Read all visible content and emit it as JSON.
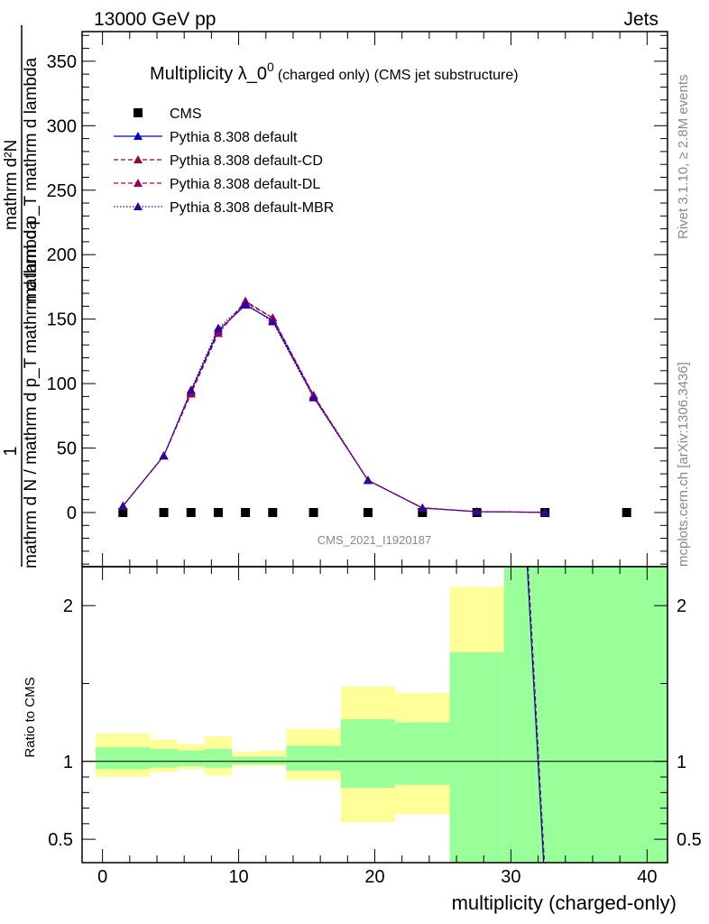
{
  "header": {
    "left": "13000 GeV pp",
    "right": "Jets"
  },
  "side": {
    "rivet": "Rivet 3.1.10, ≥ 2.8M events",
    "mcplots": "mcplots.cern.ch [arXiv:1306.3436]"
  },
  "chart_data": [
    {
      "type": "line",
      "title": "Multiplicity λ_0",
      "title_superscript": "0",
      "subtitle": "(charged only) (CMS jet substructure)",
      "watermark": "CMS_2021_I1920187",
      "ylabel_frac_num": "1",
      "ylabel_frac_den": "mathrm d N / mathrm d p_T mathrm d lambda",
      "ylabel_top": "mathrm d²N",
      "ylabel_bottom": "mathrm d p_T mathrm d lambda",
      "xlim": [
        -1.5,
        41.5
      ],
      "ylim": [
        -42,
        373
      ],
      "yticks": [
        0,
        50,
        100,
        150,
        200,
        250,
        300,
        350
      ],
      "legend_position": "top-left",
      "x": [
        1.5,
        4.5,
        6.5,
        8.5,
        10.5,
        12.5,
        15.5,
        19.5,
        23.5,
        27.5,
        32.5,
        38.5
      ],
      "series": [
        {
          "name": "CMS",
          "style": "marker",
          "color": "#000000",
          "values": [
            0,
            0,
            0,
            0,
            0,
            0,
            0,
            0,
            0,
            0,
            0,
            0
          ]
        },
        {
          "name": "Pythia 8.308 default",
          "style": "solid",
          "color": "#0000cc",
          "values": [
            5,
            44,
            94,
            141,
            161,
            149,
            90,
            25,
            3.5,
            0.7,
            0.1,
            null
          ]
        },
        {
          "name": "Pythia 8.308 default-CD",
          "style": "dashed",
          "color": "#990033",
          "values": [
            5,
            44,
            92,
            139,
            164,
            151,
            91,
            25,
            3.6,
            0.7,
            0.1,
            null
          ]
        },
        {
          "name": "Pythia 8.308 default-DL",
          "style": "dashed",
          "color": "#990066",
          "values": [
            5,
            44,
            93,
            139,
            163,
            151,
            91,
            25,
            3.6,
            0.7,
            0.1,
            null
          ]
        },
        {
          "name": "Pythia 8.308 default-MBR",
          "style": "dotted",
          "color": "#330099",
          "values": [
            5,
            44,
            95,
            143,
            162,
            148,
            89,
            25,
            3.4,
            0.7,
            0.1,
            null
          ]
        }
      ]
    },
    {
      "type": "area",
      "ylabel": "Ratio to CMS",
      "xlabel": "multiplicity (charged-only)",
      "xlim": [
        -1.5,
        41.5
      ],
      "ylim": [
        0.35,
        2.25
      ],
      "yticks_left": [
        "2",
        "1",
        "0.5"
      ],
      "yticks_right": [
        "2",
        "1",
        "0.5"
      ],
      "ytick_values": [
        2,
        1,
        0.5
      ],
      "xticks": [
        0,
        10,
        20,
        30,
        40
      ],
      "bands": [
        {
          "xlo": -0.5,
          "xhi": 3.5,
          "inner": [
            0.95,
            1.09
          ],
          "outer": [
            0.9,
            1.18
          ]
        },
        {
          "xlo": 3.5,
          "xhi": 5.5,
          "inner": [
            0.96,
            1.08
          ],
          "outer": [
            0.93,
            1.14
          ]
        },
        {
          "xlo": 5.5,
          "xhi": 7.5,
          "inner": [
            0.97,
            1.07
          ],
          "outer": [
            0.95,
            1.11
          ]
        },
        {
          "xlo": 7.5,
          "xhi": 9.5,
          "inner": [
            0.96,
            1.08
          ],
          "outer": [
            0.91,
            1.16
          ]
        },
        {
          "xlo": 9.5,
          "xhi": 11.5,
          "inner": [
            0.98,
            1.03
          ],
          "outer": [
            0.97,
            1.06
          ]
        },
        {
          "xlo": 11.5,
          "xhi": 13.5,
          "inner": [
            0.98,
            1.03
          ],
          "outer": [
            0.97,
            1.07
          ]
        },
        {
          "xlo": 13.5,
          "xhi": 17.5,
          "inner": [
            0.94,
            1.1
          ],
          "outer": [
            0.88,
            1.21
          ]
        },
        {
          "xlo": 17.5,
          "xhi": 21.5,
          "inner": [
            0.83,
            1.27
          ],
          "outer": [
            0.61,
            1.48
          ]
        },
        {
          "xlo": 21.5,
          "xhi": 25.5,
          "inner": [
            0.85,
            1.25
          ],
          "outer": [
            0.66,
            1.44
          ]
        },
        {
          "xlo": 25.5,
          "xhi": 29.5,
          "inner": [
            0.35,
            1.7
          ],
          "outer": [
            0.35,
            2.12
          ]
        },
        {
          "xlo": 29.5,
          "xhi": 41.5,
          "inner": [
            0.35,
            2.25
          ],
          "outer": [
            0.35,
            2.25
          ]
        }
      ],
      "band_colors": {
        "inner": "#99ff99",
        "outer": "#ffff99"
      },
      "ratio_line": {
        "name": "Pythia 8.308 default",
        "points": [
          [
            31.2,
            2.25
          ],
          [
            32.4,
            0.35
          ]
        ]
      }
    }
  ]
}
